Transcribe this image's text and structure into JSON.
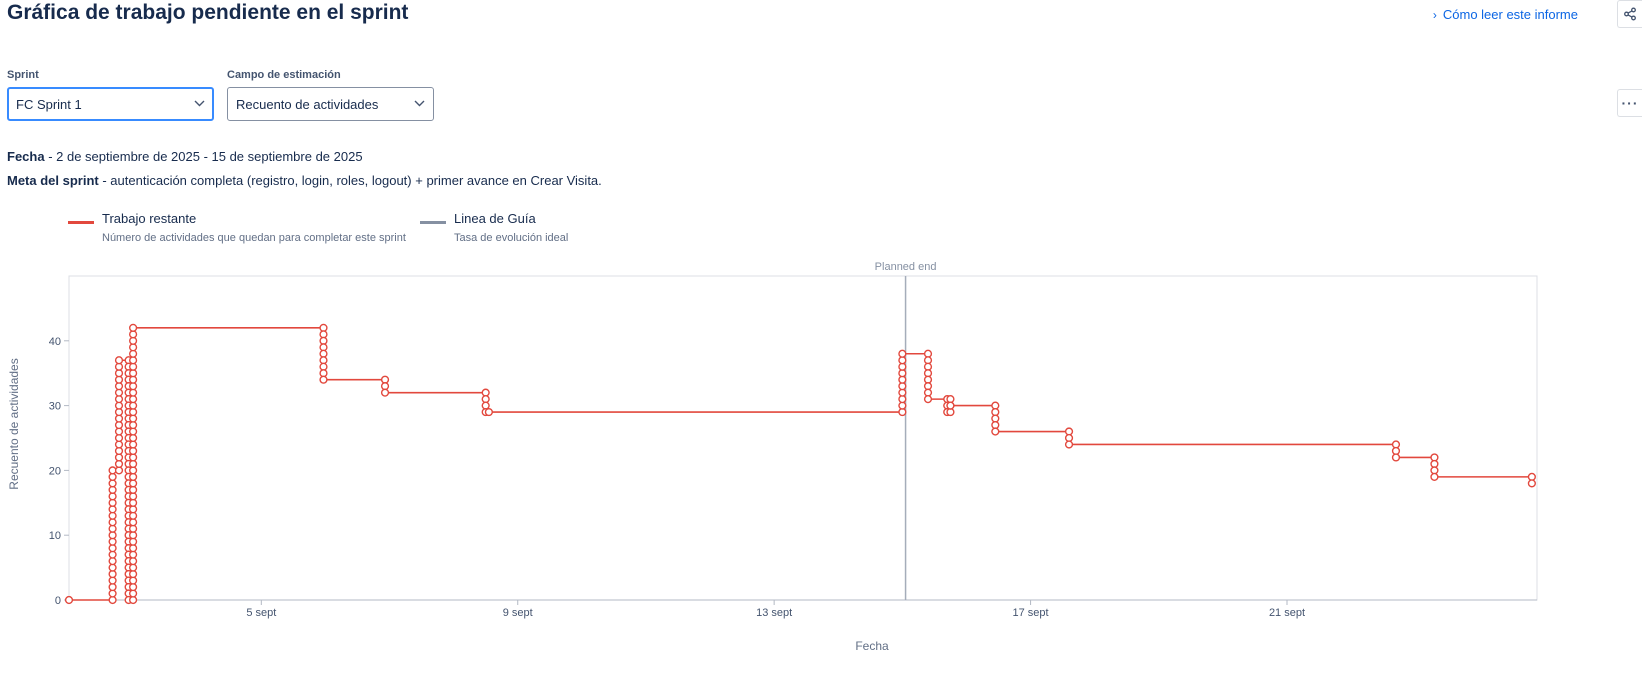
{
  "header": {
    "title": "Gráfica de trabajo pendiente en el sprint",
    "help_link": "Cómo leer este informe"
  },
  "filters": {
    "sprint_label": "Sprint",
    "sprint_value": "FC Sprint 1",
    "estimation_label": "Campo de estimación",
    "estimation_value": "Recuento de actividades"
  },
  "info": {
    "date_label": "Fecha",
    "date_value": " - 2 de septiembre de 2025 - 15 de septiembre de 2025",
    "goal_label": "Meta del sprint",
    "goal_value": " - autenticación completa (registro, login, roles, logout) + primer avance en Crear Visita."
  },
  "legend": [
    {
      "title": "Trabajo restante",
      "subtitle": "Número de actividades que quedan para completar este sprint",
      "color": "#e2483d"
    },
    {
      "title": "Linea de Guía",
      "subtitle": "Tasa de evolución ideal",
      "color": "#8590a2"
    }
  ],
  "icons": {
    "share": "share-icon",
    "more": "more-options-icon",
    "chevron": "chevron-down-icon",
    "help": "chevron-right-icon"
  },
  "chart_data": {
    "type": "line",
    "xlabel": "Fecha",
    "ylabel": "Recuento de actividades",
    "x_unit": "days since 2 sept 2025",
    "xlim": [
      0,
      22.9
    ],
    "ylim": [
      0,
      50
    ],
    "y_ticks": [
      0,
      10,
      20,
      30,
      40
    ],
    "x_ticks": [
      {
        "x": 3,
        "label": "5 sept"
      },
      {
        "x": 7,
        "label": "9 sept"
      },
      {
        "x": 11,
        "label": "13 sept"
      },
      {
        "x": 15,
        "label": "17 sept"
      },
      {
        "x": 19,
        "label": "21 sept"
      }
    ],
    "annotation": {
      "x": 13.05,
      "label": "Planned end"
    },
    "series": [
      {
        "name": "Trabajo restante",
        "color": "#e2483d",
        "points": [
          {
            "x": 0,
            "y": [
              0
            ]
          },
          {
            "x": 0.68,
            "y": [
              0,
              1,
              2,
              3,
              4,
              5,
              6,
              7,
              8,
              9,
              10,
              11,
              12,
              13,
              14,
              15,
              16,
              17,
              18,
              19,
              20
            ]
          },
          {
            "x": 0.78,
            "y": [
              20,
              21,
              22,
              23,
              24,
              25,
              26,
              27,
              28,
              29,
              30,
              31,
              32,
              33,
              34,
              35,
              36,
              37
            ]
          },
          {
            "x": 0.93,
            "y": [
              37,
              36,
              35,
              34,
              33,
              32,
              31,
              30,
              29,
              28,
              27,
              26,
              25,
              24,
              23,
              22,
              21,
              20,
              19,
              18,
              17,
              16,
              15,
              14,
              13,
              12,
              11,
              10,
              9,
              8,
              7,
              6,
              5,
              4,
              3,
              2,
              1,
              0
            ]
          },
          {
            "x": 1.0,
            "y": [
              0,
              1,
              2,
              3,
              4,
              5,
              6,
              7,
              8,
              9,
              10,
              11,
              12,
              13,
              14,
              15,
              16,
              17,
              18,
              19,
              20,
              21,
              22,
              23,
              24,
              25,
              26,
              27,
              28,
              29,
              30,
              31,
              32,
              33,
              34,
              35,
              36,
              37,
              38,
              39,
              40,
              41,
              42
            ]
          },
          {
            "x": 3.97,
            "y": [
              42,
              41,
              40,
              39,
              38,
              37,
              36,
              35,
              34
            ]
          },
          {
            "x": 4.93,
            "y": [
              34,
              33,
              32
            ]
          },
          {
            "x": 6.5,
            "y": [
              32,
              31,
              30,
              29
            ]
          },
          {
            "x": 6.55,
            "y": [
              29
            ]
          },
          {
            "x": 13.0,
            "y": [
              29,
              30,
              31,
              32,
              33,
              34,
              35,
              36,
              37,
              38
            ]
          },
          {
            "x": 13.4,
            "y": [
              38,
              37,
              36,
              35,
              34,
              33,
              32,
              31
            ]
          },
          {
            "x": 13.7,
            "y": [
              31,
              30,
              29
            ]
          },
          {
            "x": 13.75,
            "y": [
              29,
              30,
              31,
              30
            ]
          },
          {
            "x": 14.45,
            "y": [
              30,
              29,
              28,
              27,
              26
            ]
          },
          {
            "x": 15.6,
            "y": [
              26,
              25,
              24
            ]
          },
          {
            "x": 20.7,
            "y": [
              24,
              23,
              22
            ]
          },
          {
            "x": 21.3,
            "y": [
              22,
              21,
              20,
              19
            ]
          },
          {
            "x": 22.82,
            "y": [
              19,
              18
            ]
          }
        ]
      }
    ]
  }
}
